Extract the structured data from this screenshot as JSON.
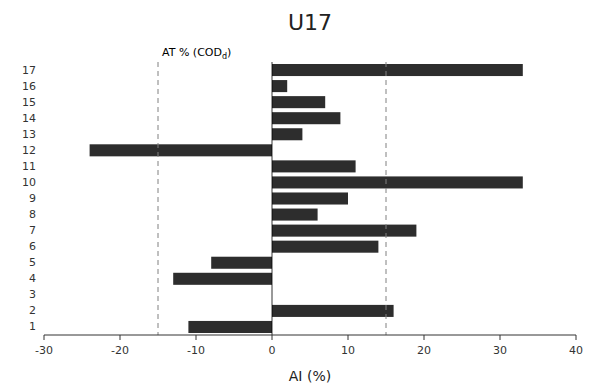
{
  "chart_data": {
    "type": "bar",
    "orientation": "horizontal",
    "title": "U17",
    "xlabel": "AI (%)",
    "categories": [
      "1",
      "2",
      "3",
      "4",
      "5",
      "6",
      "7",
      "8",
      "9",
      "10",
      "11",
      "12",
      "13",
      "14",
      "15",
      "16",
      "17"
    ],
    "values": [
      -11,
      16,
      0,
      -13,
      -8,
      14,
      19,
      6,
      10,
      33,
      11,
      -24,
      4,
      9,
      7,
      2,
      33
    ],
    "color": "#2d2d2d",
    "xlim": [
      -30,
      40
    ],
    "xticks": [
      -30,
      -20,
      -10,
      0,
      10,
      20,
      30,
      40
    ],
    "vlines": [
      -15,
      15
    ],
    "annotations": [
      {
        "text": "AT % (COD",
        "subscript": "d",
        "suffix": ")"
      }
    ],
    "grid": false
  }
}
